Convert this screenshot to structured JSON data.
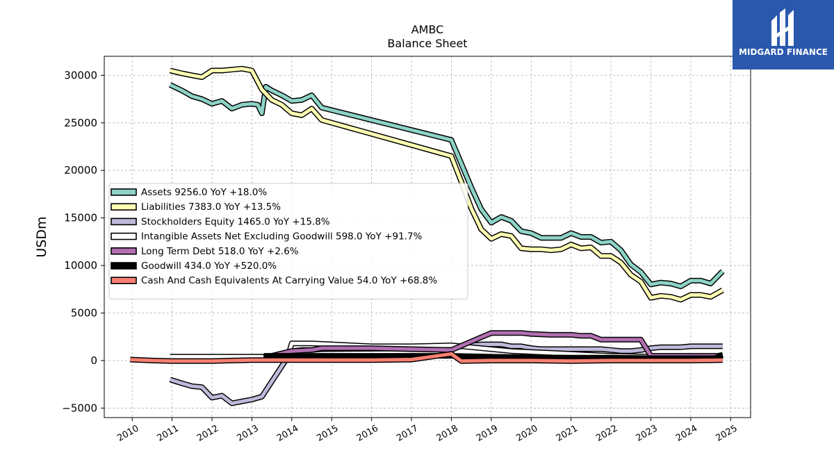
{
  "logo": {
    "text": "MIDGARD FINANCE"
  },
  "chart_data": {
    "type": "line",
    "title": "AMBC",
    "subtitle": "Balance  Sheet",
    "ylabel": "USDm",
    "xlabel": "",
    "ylim": [
      -6000,
      32000
    ],
    "xlim": [
      2009.3,
      2025.5
    ],
    "yticks": [
      -5000,
      0,
      5000,
      10000,
      15000,
      20000,
      25000,
      30000
    ],
    "xticks": [
      2010,
      2011,
      2012,
      2013,
      2014,
      2015,
      2016,
      2017,
      2018,
      2019,
      2020,
      2021,
      2022,
      2023,
      2024,
      2025
    ],
    "grid": true,
    "legend_position": "center-left",
    "series": [
      {
        "name": "Assets  9256.0 YoY +18.0%",
        "color": "#8dd3c7",
        "x": [
          2010.95,
          2011.25,
          2011.5,
          2011.75,
          2012.0,
          2012.25,
          2012.5,
          2012.75,
          2013.0,
          2013.15,
          2013.25,
          2013.35,
          2013.5,
          2013.75,
          2014.0,
          2014.25,
          2014.5,
          2014.75,
          2018.0,
          2018.25,
          2018.5,
          2018.75,
          2019.0,
          2019.25,
          2019.5,
          2019.75,
          2020.0,
          2020.25,
          2020.5,
          2020.75,
          2021.0,
          2021.25,
          2021.5,
          2021.75,
          2022.0,
          2022.25,
          2022.5,
          2022.75,
          2023.0,
          2023.25,
          2023.5,
          2023.75,
          2024.0,
          2024.25,
          2024.5,
          2024.8
        ],
        "y": [
          29000,
          28400,
          27800,
          27500,
          27000,
          27300,
          26500,
          26900,
          27000,
          26900,
          26000,
          28800,
          28400,
          27900,
          27300,
          27400,
          27900,
          26600,
          23200,
          20700,
          18200,
          15900,
          14500,
          15100,
          14700,
          13600,
          13400,
          12900,
          12900,
          12900,
          13400,
          13000,
          13000,
          12400,
          12500,
          11600,
          10100,
          9300,
          8000,
          8200,
          8100,
          7800,
          8400,
          8400,
          8100,
          9400
        ]
      },
      {
        "name": "Liabilities  7383.0 YoY +13.5%",
        "color": "#ffffb3",
        "x": [
          2010.95,
          2011.25,
          2011.5,
          2011.75,
          2012.0,
          2012.25,
          2012.5,
          2012.75,
          2013.0,
          2013.25,
          2013.5,
          2013.75,
          2014.0,
          2014.25,
          2014.5,
          2014.75,
          2018.0,
          2018.25,
          2018.5,
          2018.75,
          2019.0,
          2019.25,
          2019.5,
          2019.75,
          2020.0,
          2020.25,
          2020.5,
          2020.75,
          2021.0,
          2021.25,
          2021.5,
          2021.75,
          2022.0,
          2022.25,
          2022.5,
          2022.75,
          2023.0,
          2023.25,
          2023.5,
          2023.75,
          2024.0,
          2024.25,
          2024.5,
          2024.8
        ],
        "y": [
          30500,
          30200,
          30000,
          29800,
          30500,
          30500,
          30600,
          30700,
          30500,
          28500,
          27400,
          26900,
          26000,
          25800,
          26500,
          25300,
          21500,
          18800,
          16000,
          13800,
          12800,
          13300,
          13100,
          11800,
          11700,
          11700,
          11600,
          11700,
          12200,
          11800,
          11900,
          11000,
          11000,
          10300,
          9000,
          8300,
          6600,
          6800,
          6700,
          6400,
          6900,
          6900,
          6700,
          7400
        ]
      },
      {
        "name": "Stockholders Equity  1465.0 YoY +15.8%",
        "color": "#bebada",
        "x": [
          2010.95,
          2011.25,
          2011.5,
          2011.75,
          2012.0,
          2012.25,
          2012.5,
          2012.75,
          2013.0,
          2013.25,
          2014.0,
          2014.25,
          2014.5,
          2014.75,
          2018.0,
          2018.25,
          2018.5,
          2018.75,
          2019.0,
          2019.25,
          2019.5,
          2019.75,
          2020.0,
          2020.25,
          2020.5,
          2020.75,
          2021.0,
          2021.25,
          2021.5,
          2021.75,
          2022.0,
          2022.25,
          2022.5,
          2022.75,
          2023.0,
          2023.25,
          2023.5,
          2023.75,
          2024.0,
          2024.25,
          2024.5,
          2024.8
        ],
        "y": [
          -2000,
          -2400,
          -2700,
          -2800,
          -3900,
          -3700,
          -4500,
          -4300,
          -4100,
          -3800,
          1000,
          1100,
          1100,
          1200,
          1300,
          1500,
          1600,
          1700,
          1700,
          1700,
          1500,
          1500,
          1300,
          1200,
          1200,
          1200,
          1200,
          1200,
          1200,
          1200,
          1100,
          1000,
          1000,
          1100,
          1300,
          1400,
          1400,
          1400,
          1500,
          1500,
          1500,
          1500
        ]
      },
      {
        "name": "Intangible Assets Net Excluding Goodwill  598.0 YoY +91.7%",
        "color": "#ffffff",
        "x": [
          2010.95,
          2012.0,
          2013.0,
          2013.9,
          2014.0,
          2014.5,
          2015.0,
          2016.0,
          2017.0,
          2018.0,
          2018.5,
          2019.0,
          2019.5,
          2020.0,
          2020.5,
          2021.0,
          2021.5,
          2022.0,
          2022.5,
          2023.0,
          2023.5,
          2024.0,
          2024.5,
          2024.8
        ],
        "y": [
          400,
          400,
          400,
          400,
          1800,
          1800,
          1700,
          1500,
          1500,
          1600,
          1400,
          1200,
          1000,
          900,
          800,
          700,
          600,
          500,
          450,
          400,
          350,
          350,
          320,
          600
        ]
      },
      {
        "name": "Long Term Debt  518.0 YoY +2.6%",
        "color": "#b16fb0",
        "x": [
          2013.3,
          2014.0,
          2014.5,
          2014.75,
          2016.0,
          2017.0,
          2018.0,
          2018.5,
          2019.0,
          2019.5,
          2019.75,
          2020.0,
          2020.5,
          2021.0,
          2021.25,
          2021.5,
          2021.75,
          2022.0,
          2022.5,
          2022.75,
          2023.0,
          2023.5,
          2024.0,
          2024.5,
          2024.8
        ],
        "y": [
          300,
          1000,
          1100,
          1300,
          1300,
          1200,
          1100,
          2000,
          2900,
          2900,
          2900,
          2800,
          2700,
          2700,
          2600,
          2600,
          2200,
          2200,
          2200,
          2200,
          500,
          500,
          500,
          500,
          500
        ]
      },
      {
        "name": "Goodwill  434.0 YoY +520.0%",
        "color": "#000000",
        "x": [
          2013.3,
          2014.0,
          2015.0,
          2016.0,
          2017.0,
          2018.0,
          2019.0,
          2020.0,
          2021.0,
          2022.0,
          2023.0,
          2024.0,
          2024.6,
          2024.8
        ],
        "y": [
          500,
          500,
          500,
          500,
          500,
          500,
          400,
          350,
          300,
          300,
          250,
          250,
          250,
          550
        ]
      },
      {
        "name": "Cash And Cash Equivalents At Carrying Value  54.0 YoY +68.8%",
        "color": "#fb8072",
        "x": [
          2009.95,
          2010.5,
          2011.0,
          2011.5,
          2012.0,
          2012.5,
          2013.0,
          2013.5,
          2014.0,
          2014.5,
          2015.0,
          2016.0,
          2017.0,
          2018.0,
          2018.25,
          2019.0,
          2020.0,
          2021.0,
          2022.0,
          2023.0,
          2024.0,
          2024.8
        ],
        "y": [
          100,
          0,
          -50,
          -50,
          -50,
          0,
          50,
          50,
          50,
          50,
          50,
          50,
          100,
          700,
          -50,
          0,
          0,
          -50,
          0,
          0,
          0,
          50
        ]
      }
    ]
  }
}
